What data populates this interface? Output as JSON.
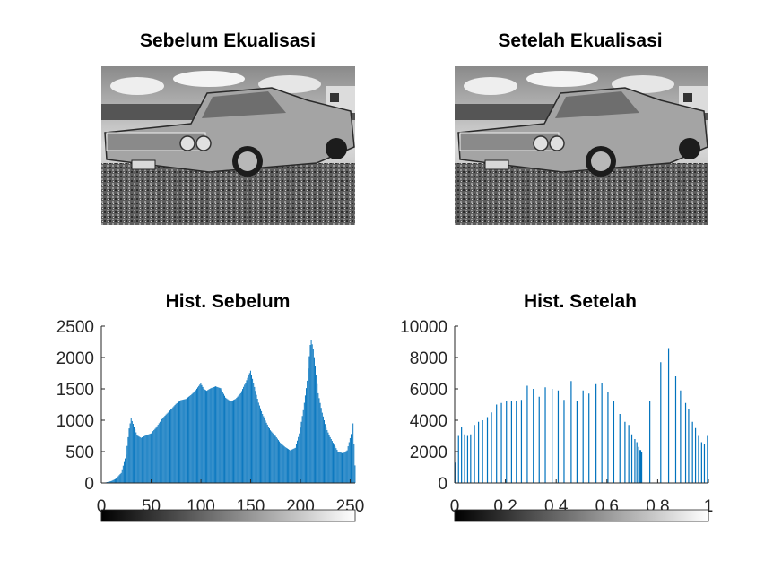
{
  "chart_data": [
    {
      "type": "image",
      "title": "Sebelum Ekualisasi"
    },
    {
      "type": "image",
      "title": "Setelah Ekualisasi"
    },
    {
      "type": "bar",
      "title": "Hist. Sebelum",
      "xlabel": "",
      "ylabel": "",
      "xlim": [
        0,
        255
      ],
      "ylim": [
        0,
        2500
      ],
      "xticks": [
        "0",
        "50",
        "100",
        "150",
        "200",
        "250"
      ],
      "yticks": [
        "0",
        "500",
        "1000",
        "1500",
        "2000",
        "2500"
      ],
      "colorbar": "gray",
      "bar_color": "#0072bd",
      "envelope": [
        [
          0,
          0
        ],
        [
          5,
          10
        ],
        [
          10,
          30
        ],
        [
          15,
          70
        ],
        [
          20,
          160
        ],
        [
          25,
          450
        ],
        [
          28,
          870
        ],
        [
          30,
          1030
        ],
        [
          33,
          900
        ],
        [
          36,
          760
        ],
        [
          40,
          720
        ],
        [
          45,
          760
        ],
        [
          50,
          790
        ],
        [
          55,
          880
        ],
        [
          60,
          1000
        ],
        [
          65,
          1090
        ],
        [
          70,
          1170
        ],
        [
          75,
          1260
        ],
        [
          80,
          1320
        ],
        [
          85,
          1340
        ],
        [
          90,
          1400
        ],
        [
          95,
          1480
        ],
        [
          100,
          1590
        ],
        [
          103,
          1500
        ],
        [
          106,
          1470
        ],
        [
          110,
          1510
        ],
        [
          115,
          1540
        ],
        [
          120,
          1510
        ],
        [
          125,
          1360
        ],
        [
          130,
          1300
        ],
        [
          135,
          1340
        ],
        [
          140,
          1430
        ],
        [
          145,
          1600
        ],
        [
          150,
          1790
        ],
        [
          154,
          1530
        ],
        [
          158,
          1280
        ],
        [
          162,
          1100
        ],
        [
          166,
          960
        ],
        [
          170,
          840
        ],
        [
          175,
          750
        ],
        [
          180,
          640
        ],
        [
          185,
          570
        ],
        [
          190,
          520
        ],
        [
          195,
          560
        ],
        [
          199,
          790
        ],
        [
          203,
          1160
        ],
        [
          207,
          1630
        ],
        [
          209,
          2020
        ],
        [
          210,
          2200
        ],
        [
          211,
          2280
        ],
        [
          213,
          2140
        ],
        [
          215,
          1870
        ],
        [
          218,
          1430
        ],
        [
          222,
          1120
        ],
        [
          226,
          880
        ],
        [
          230,
          730
        ],
        [
          234,
          610
        ],
        [
          238,
          500
        ],
        [
          243,
          470
        ],
        [
          247,
          520
        ],
        [
          251,
          780
        ],
        [
          253,
          950
        ],
        [
          255,
          280
        ]
      ]
    },
    {
      "type": "bar",
      "title": "Hist. Setelah",
      "xlabel": "",
      "ylabel": "",
      "xlim": [
        0,
        1
      ],
      "ylim": [
        0,
        10000
      ],
      "xticks": [
        "0",
        "0.2",
        "0.4",
        "0.6",
        "0.8",
        "1"
      ],
      "yticks": [
        "0",
        "2000",
        "4000",
        "6000",
        "8000",
        "10000"
      ],
      "colorbar": "gray",
      "bar_color": "#0072bd",
      "x": [
        0.004,
        0.015,
        0.027,
        0.039,
        0.051,
        0.063,
        0.078,
        0.094,
        0.11,
        0.129,
        0.145,
        0.165,
        0.184,
        0.204,
        0.224,
        0.243,
        0.263,
        0.286,
        0.31,
        0.333,
        0.357,
        0.384,
        0.408,
        0.431,
        0.459,
        0.482,
        0.506,
        0.529,
        0.557,
        0.58,
        0.604,
        0.627,
        0.651,
        0.671,
        0.686,
        0.698,
        0.71,
        0.718,
        0.725,
        0.729,
        0.733,
        0.737,
        0.769,
        0.812,
        0.843,
        0.871,
        0.89,
        0.91,
        0.922,
        0.937,
        0.949,
        0.961,
        0.973,
        0.984,
        0.996
      ],
      "values": [
        1300,
        3000,
        3600,
        3100,
        3000,
        3100,
        3700,
        3900,
        4000,
        4200,
        4500,
        5000,
        5100,
        5200,
        5200,
        5200,
        5300,
        6200,
        6000,
        5500,
        6100,
        6000,
        5900,
        5300,
        6500,
        5200,
        5900,
        5700,
        6300,
        6400,
        5800,
        5200,
        4400,
        3900,
        3700,
        3100,
        2800,
        2600,
        2300,
        2100,
        2100,
        2000,
        5200,
        7700,
        8600,
        6800,
        5900,
        5100,
        4700,
        3900,
        3500,
        3000,
        2600,
        2500,
        3000
      ]
    }
  ]
}
